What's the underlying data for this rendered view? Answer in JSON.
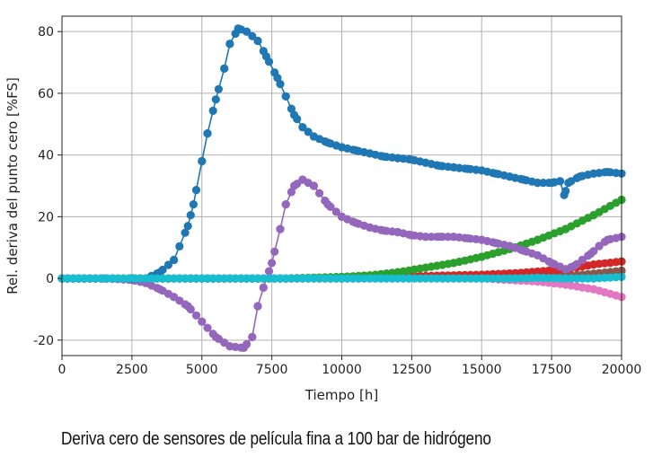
{
  "caption": "Deriva cero de sensores de película fina a 100 bar de hidrógeno",
  "chart_data": {
    "type": "line",
    "title": "",
    "xlabel": "Tiempo [h]",
    "ylabel": "Rel. deriva del punto cero [%FS]",
    "xlim": [
      0,
      20000
    ],
    "ylim": [
      -25,
      85
    ],
    "xticks": [
      0,
      2500,
      5000,
      7500,
      10000,
      12500,
      15000,
      17500,
      20000
    ],
    "yticks": [
      -20,
      0,
      20,
      40,
      60,
      80
    ],
    "grid": true,
    "markers": true,
    "series": [
      {
        "color": "#e377c2",
        "points": [
          [
            0,
            0
          ],
          [
            5000,
            0
          ],
          [
            10000,
            0
          ],
          [
            15000,
            0
          ],
          [
            16000,
            -0.5
          ],
          [
            17000,
            -1
          ],
          [
            18000,
            -2
          ],
          [
            19000,
            -3.5
          ],
          [
            20000,
            -6
          ]
        ]
      },
      {
        "color": "#8c564b",
        "points": [
          [
            0,
            0
          ],
          [
            10000,
            0
          ],
          [
            15000,
            0.3
          ],
          [
            17000,
            0.5
          ],
          [
            18000,
            0.8
          ],
          [
            19000,
            1.5
          ],
          [
            20000,
            2.5
          ]
        ]
      },
      {
        "color": "#d62728",
        "points": [
          [
            0,
            0
          ],
          [
            8000,
            0
          ],
          [
            10000,
            0.3
          ],
          [
            12500,
            0.7
          ],
          [
            15000,
            1.2
          ],
          [
            16000,
            1.6
          ],
          [
            17000,
            2.2
          ],
          [
            18000,
            3
          ],
          [
            19000,
            4.5
          ],
          [
            20000,
            5.5
          ]
        ]
      },
      {
        "color": "#2ca02c",
        "points": [
          [
            0,
            0
          ],
          [
            8000,
            0
          ],
          [
            10000,
            0.5
          ],
          [
            11000,
            1
          ],
          [
            12000,
            2
          ],
          [
            13000,
            3.5
          ],
          [
            14000,
            5
          ],
          [
            15000,
            7
          ],
          [
            16000,
            9.5
          ],
          [
            17000,
            12.5
          ],
          [
            18000,
            16
          ],
          [
            19000,
            20.5
          ],
          [
            20000,
            25.5
          ]
        ]
      },
      {
        "color": "#9467bd",
        "points": [
          [
            0,
            0
          ],
          [
            1500,
            0
          ],
          [
            2500,
            -0.5
          ],
          [
            3000,
            -1.5
          ],
          [
            3500,
            -3.5
          ],
          [
            4000,
            -6
          ],
          [
            4500,
            -9
          ],
          [
            5000,
            -14
          ],
          [
            5500,
            -19
          ],
          [
            6000,
            -22
          ],
          [
            6500,
            -22.5
          ],
          [
            6800,
            -19
          ],
          [
            7000,
            -9
          ],
          [
            7200,
            -3
          ],
          [
            7500,
            5
          ],
          [
            7800,
            16
          ],
          [
            8000,
            24
          ],
          [
            8300,
            30
          ],
          [
            8600,
            32
          ],
          [
            9000,
            30
          ],
          [
            9500,
            24
          ],
          [
            10000,
            20
          ],
          [
            10500,
            18
          ],
          [
            11000,
            16.5
          ],
          [
            11500,
            15.5
          ],
          [
            12000,
            15
          ],
          [
            12500,
            14
          ],
          [
            13000,
            13.5
          ],
          [
            13500,
            13.5
          ],
          [
            14000,
            13.5
          ],
          [
            14500,
            13
          ],
          [
            15000,
            12.5
          ],
          [
            15500,
            11.5
          ],
          [
            16000,
            10.5
          ],
          [
            16500,
            9
          ],
          [
            17000,
            7.5
          ],
          [
            17500,
            5
          ],
          [
            18000,
            3
          ],
          [
            18300,
            4
          ],
          [
            18600,
            6
          ],
          [
            18900,
            8
          ],
          [
            19200,
            10.5
          ],
          [
            19500,
            12.5
          ],
          [
            20000,
            13.5
          ]
        ]
      },
      {
        "color": "#1f77b4",
        "points": [
          [
            0,
            0
          ],
          [
            2500,
            0
          ],
          [
            3000,
            0
          ],
          [
            3500,
            2
          ],
          [
            4000,
            6
          ],
          [
            4500,
            17
          ],
          [
            4700,
            24
          ],
          [
            5000,
            38
          ],
          [
            5200,
            47
          ],
          [
            5500,
            58
          ],
          [
            5800,
            68
          ],
          [
            6000,
            76
          ],
          [
            6300,
            81
          ],
          [
            6600,
            80
          ],
          [
            7000,
            77
          ],
          [
            7300,
            72
          ],
          [
            7700,
            65
          ],
          [
            8000,
            59
          ],
          [
            8300,
            53
          ],
          [
            8600,
            49
          ],
          [
            9000,
            46
          ],
          [
            9500,
            44
          ],
          [
            10000,
            42.5
          ],
          [
            10500,
            41.5
          ],
          [
            11000,
            40.5
          ],
          [
            11500,
            39.5
          ],
          [
            12000,
            39
          ],
          [
            12500,
            38.5
          ],
          [
            13000,
            37.5
          ],
          [
            13500,
            36.5
          ],
          [
            14000,
            36
          ],
          [
            14500,
            35.5
          ],
          [
            15000,
            35
          ],
          [
            15500,
            34
          ],
          [
            16000,
            33
          ],
          [
            16500,
            32
          ],
          [
            17000,
            31
          ],
          [
            17500,
            31
          ],
          [
            17800,
            31.5
          ],
          [
            17950,
            27
          ],
          [
            18100,
            31
          ],
          [
            18500,
            33
          ],
          [
            19000,
            34
          ],
          [
            19500,
            34.5
          ],
          [
            20000,
            34
          ]
        ]
      },
      {
        "color": "#17becf",
        "points": [
          [
            0,
            0
          ],
          [
            5000,
            0
          ],
          [
            10000,
            0
          ],
          [
            15000,
            0
          ],
          [
            16000,
            0
          ],
          [
            17000,
            0.2
          ],
          [
            18000,
            0
          ],
          [
            19000,
            0
          ],
          [
            20000,
            0.5
          ]
        ]
      }
    ]
  }
}
